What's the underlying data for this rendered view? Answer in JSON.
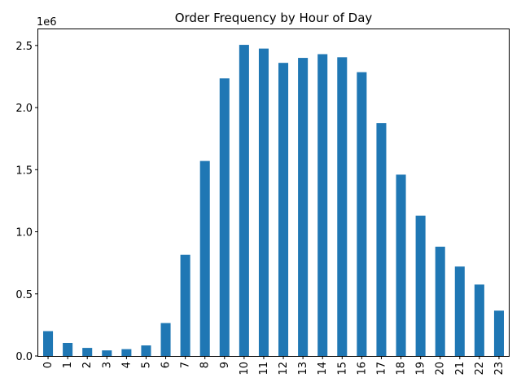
{
  "chart_data": {
    "type": "bar",
    "title": "Order Frequency by Hour of Day",
    "xlabel": "",
    "ylabel": "",
    "y_offset_label": "1e6",
    "categories": [
      "0",
      "1",
      "2",
      "3",
      "4",
      "5",
      "6",
      "7",
      "8",
      "9",
      "10",
      "11",
      "12",
      "13",
      "14",
      "15",
      "16",
      "17",
      "18",
      "19",
      "20",
      "21",
      "22",
      "23"
    ],
    "values": [
      200000,
      105000,
      65000,
      45000,
      55000,
      85000,
      265000,
      815000,
      1570000,
      2235000,
      2505000,
      2475000,
      2360000,
      2400000,
      2430000,
      2405000,
      2285000,
      1875000,
      1460000,
      1130000,
      880000,
      720000,
      575000,
      365000
    ],
    "ylim": [
      0,
      2630000
    ],
    "y_ticks": [
      0,
      500000,
      1000000,
      1500000,
      2000000,
      2500000
    ],
    "y_tick_labels": [
      "0.0",
      "0.5",
      "1.0",
      "1.5",
      "2.0",
      "2.5"
    ],
    "bar_color": "#1f77b4",
    "grid": false,
    "legend": "none"
  }
}
